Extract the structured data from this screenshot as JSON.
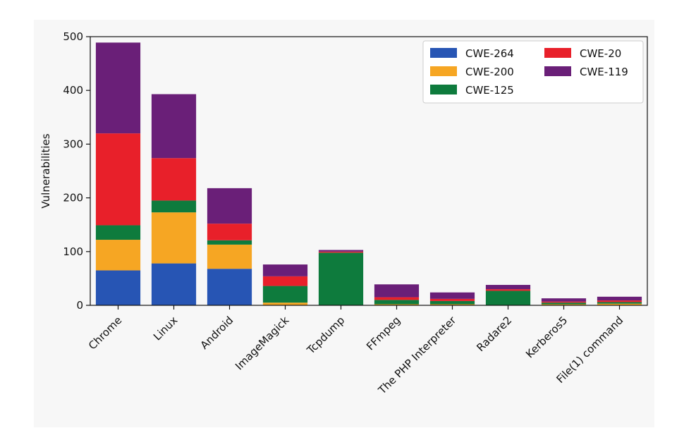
{
  "chart_data": {
    "type": "bar",
    "stacked": true,
    "categories": [
      "Chrome",
      "Linux",
      "Android",
      "ImageMagick",
      "Tcpdump",
      "FFmpeg",
      "The PHP Interpreter",
      "Radare2",
      "Kerberos5",
      "File(1) command"
    ],
    "series": [
      {
        "name": "CWE-264",
        "color": "#2755b4",
        "values": [
          65,
          78,
          68,
          0,
          0,
          0,
          0,
          0,
          0,
          0
        ]
      },
      {
        "name": "CWE-200",
        "color": "#f6a623",
        "values": [
          57,
          95,
          45,
          5,
          0,
          2,
          2,
          0,
          2,
          3
        ]
      },
      {
        "name": "CWE-125",
        "color": "#0e7b3d",
        "values": [
          27,
          22,
          8,
          31,
          98,
          8,
          6,
          27,
          3,
          3
        ]
      },
      {
        "name": "CWE-20",
        "color": "#e8202a",
        "values": [
          171,
          79,
          31,
          18,
          2,
          5,
          4,
          3,
          2,
          3
        ]
      },
      {
        "name": "CWE-119",
        "color": "#6a1f78",
        "values": [
          169,
          119,
          66,
          22,
          3,
          24,
          12,
          8,
          6,
          7
        ]
      }
    ],
    "ylabel": "Vulnerabilities",
    "xlabel": "",
    "ylim": [
      0,
      500
    ],
    "yticks": [
      0,
      100,
      200,
      300,
      400,
      500
    ],
    "legend": "top-right",
    "legend_columns": 2,
    "grid": false
  }
}
